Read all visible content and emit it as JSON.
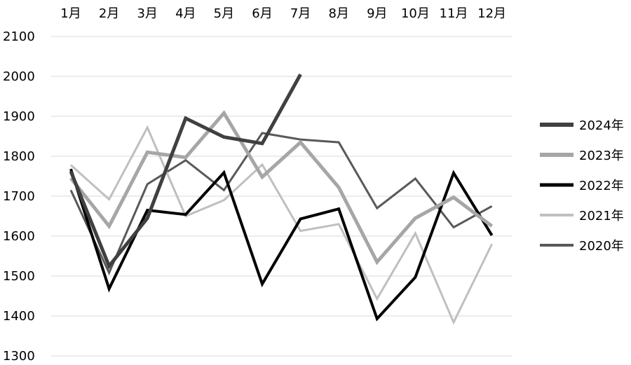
{
  "chart_data": {
    "type": "line",
    "title": "",
    "xlabel": "",
    "ylabel": "",
    "categories": [
      "1月",
      "2月",
      "3月",
      "4月",
      "5月",
      "6月",
      "7月",
      "8月",
      "9月",
      "10月",
      "11月",
      "12月"
    ],
    "ylim": [
      1300,
      2100
    ],
    "yticks": [
      1300,
      1400,
      1500,
      1600,
      1700,
      1800,
      1900,
      2000,
      2100
    ],
    "grid": true,
    "legend_position": "right",
    "series": [
      {
        "name": "2024年",
        "color": "#404040",
        "width": 5,
        "values": [
          1762,
          1525,
          1645,
          1895,
          1848,
          1832,
          2005,
          null,
          null,
          null,
          null,
          null
        ]
      },
      {
        "name": "2023年",
        "color": "#a6a6a6",
        "width": 5,
        "values": [
          1745,
          1625,
          1810,
          1797,
          1908,
          1748,
          1835,
          1722,
          1535,
          1645,
          1697,
          1625
        ]
      },
      {
        "name": "2022年",
        "color": "#000000",
        "width": 4,
        "values": [
          1768,
          1468,
          1665,
          1654,
          1759,
          1480,
          1643,
          1668,
          1393,
          1497,
          1758,
          1602
        ]
      },
      {
        "name": "2021年",
        "color": "#bfbfbf",
        "width": 3,
        "values": [
          1778,
          1692,
          1872,
          1650,
          1690,
          1779,
          1613,
          1630,
          1443,
          1607,
          1384,
          1580
        ]
      },
      {
        "name": "2020年",
        "color": "#595959",
        "width": 3,
        "values": [
          1715,
          1508,
          1730,
          1790,
          1715,
          1858,
          1842,
          1835,
          1670,
          1744,
          1622,
          1675
        ]
      }
    ]
  }
}
